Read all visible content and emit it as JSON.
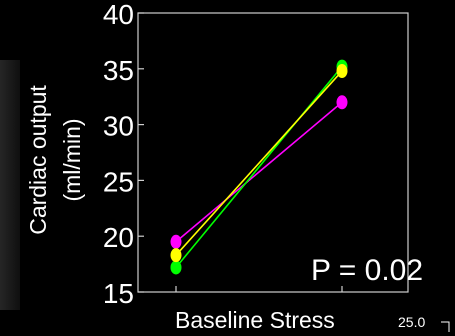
{
  "chart_data": {
    "type": "line",
    "categories": [
      "Baseline",
      "Stress"
    ],
    "series": [
      {
        "values": [
          19.5,
          32.0
        ],
        "color": "#ff00ff"
      },
      {
        "values": [
          17.2,
          35.2
        ],
        "color": "#00ff00"
      },
      {
        "values": [
          18.3,
          34.8
        ],
        "color": "#ffff00"
      }
    ],
    "ylabel": [
      "Cardiac output",
      "(ml/min)"
    ],
    "ylim": [
      15,
      40
    ],
    "yticks": [
      15,
      20,
      25,
      30,
      35,
      40
    ],
    "annotation": "P = 0.02",
    "corner_label": "25.0",
    "grid": false
  }
}
